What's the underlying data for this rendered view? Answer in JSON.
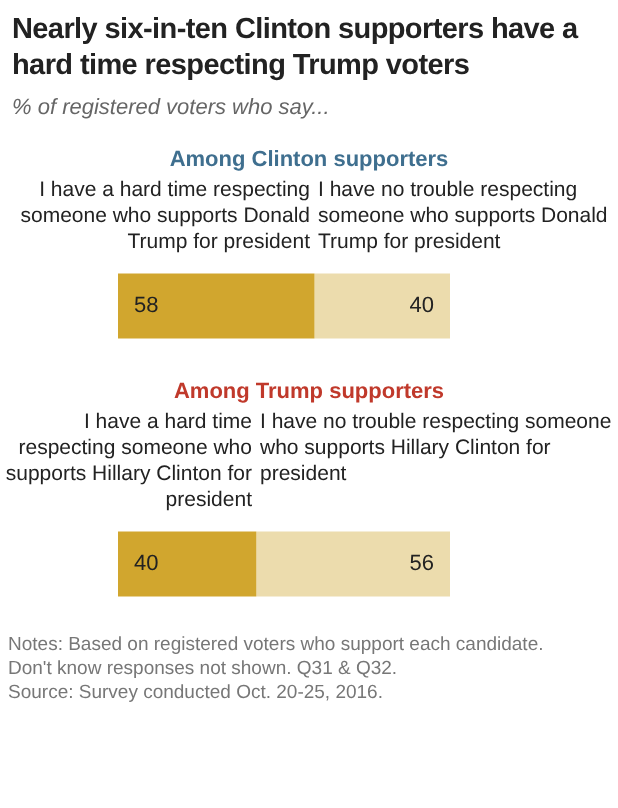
{
  "chart_data": [
    {
      "type": "bar",
      "title": "Nearly six-in-ten Clinton supporters have a hard time respecting Trump voters",
      "subtitle": "% of registered voters who say...",
      "legend_title": "Among Clinton supporters",
      "orientation": "horizontal",
      "stacked": true,
      "categories": [
        null
      ],
      "data_labels": true,
      "series": [
        {
          "name": "I have a hard time respecting someone who supports Donald Trump for president",
          "color": "#d1a62e",
          "values": [
            58
          ]
        },
        {
          "name": "I have no trouble respecting someone who supports Donald Trump for president",
          "color": "#ecdcad",
          "values": [
            40
          ]
        }
      ]
    },
    {
      "type": "bar",
      "legend_title": "Among Trump supporters",
      "orientation": "horizontal",
      "stacked": true,
      "categories": [
        null
      ],
      "data_labels": true,
      "series": [
        {
          "name": "I have a hard time respecting someone who supports Hillary Clinton for president",
          "color": "#d1a62e",
          "values": [
            40
          ]
        },
        {
          "name": "I have no trouble respecting someone who supports Hillary Clinton for president",
          "color": "#ecdcad",
          "values": [
            56
          ]
        }
      ],
      "annotations": [
        "Notes: Based on registered voters who support each candidate.",
        "Don't know responses not shown. Q31 & Q32.",
        "Source: Survey conducted Oct. 20-25, 2016."
      ]
    }
  ]
}
